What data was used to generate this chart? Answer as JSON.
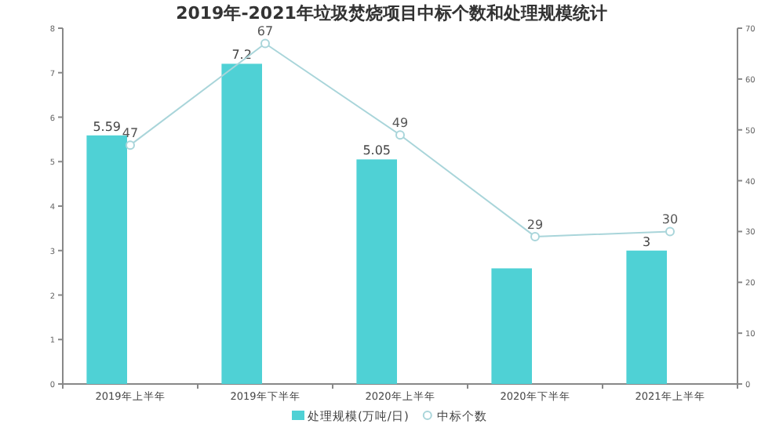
{
  "chart_data": {
    "type": "bar",
    "title": "2019年-2021年垃圾焚烧项目中标个数和处理规模统计",
    "categories": [
      "2019年上半年",
      "2019年下半年",
      "2020年上半年",
      "2020年下半年",
      "2021年上半年"
    ],
    "series": [
      {
        "name": "处理规模(万吨/日)",
        "color": "#4fd1d5",
        "values": [
          5.59,
          7.2,
          5.05,
          2.6,
          3
        ],
        "value_labels": [
          "5.59",
          "7.2",
          "5.05",
          null,
          "3"
        ]
      },
      {
        "name": "中标个数",
        "type": "line",
        "axis": "y2",
        "color": "#a9d5da",
        "marker": "circle",
        "values": [
          47,
          67,
          49,
          29,
          30
        ],
        "value_labels": [
          "47",
          "67",
          "49",
          "29",
          "30"
        ]
      }
    ],
    "ylim": [
      0,
      8
    ],
    "yticks": [
      0,
      1,
      2,
      3,
      4,
      5,
      6,
      7,
      8
    ],
    "y2lim": [
      0,
      70
    ],
    "y2ticks": [
      0,
      10,
      20,
      30,
      40,
      50,
      60,
      70
    ],
    "grid": false,
    "legend": "bottom"
  }
}
